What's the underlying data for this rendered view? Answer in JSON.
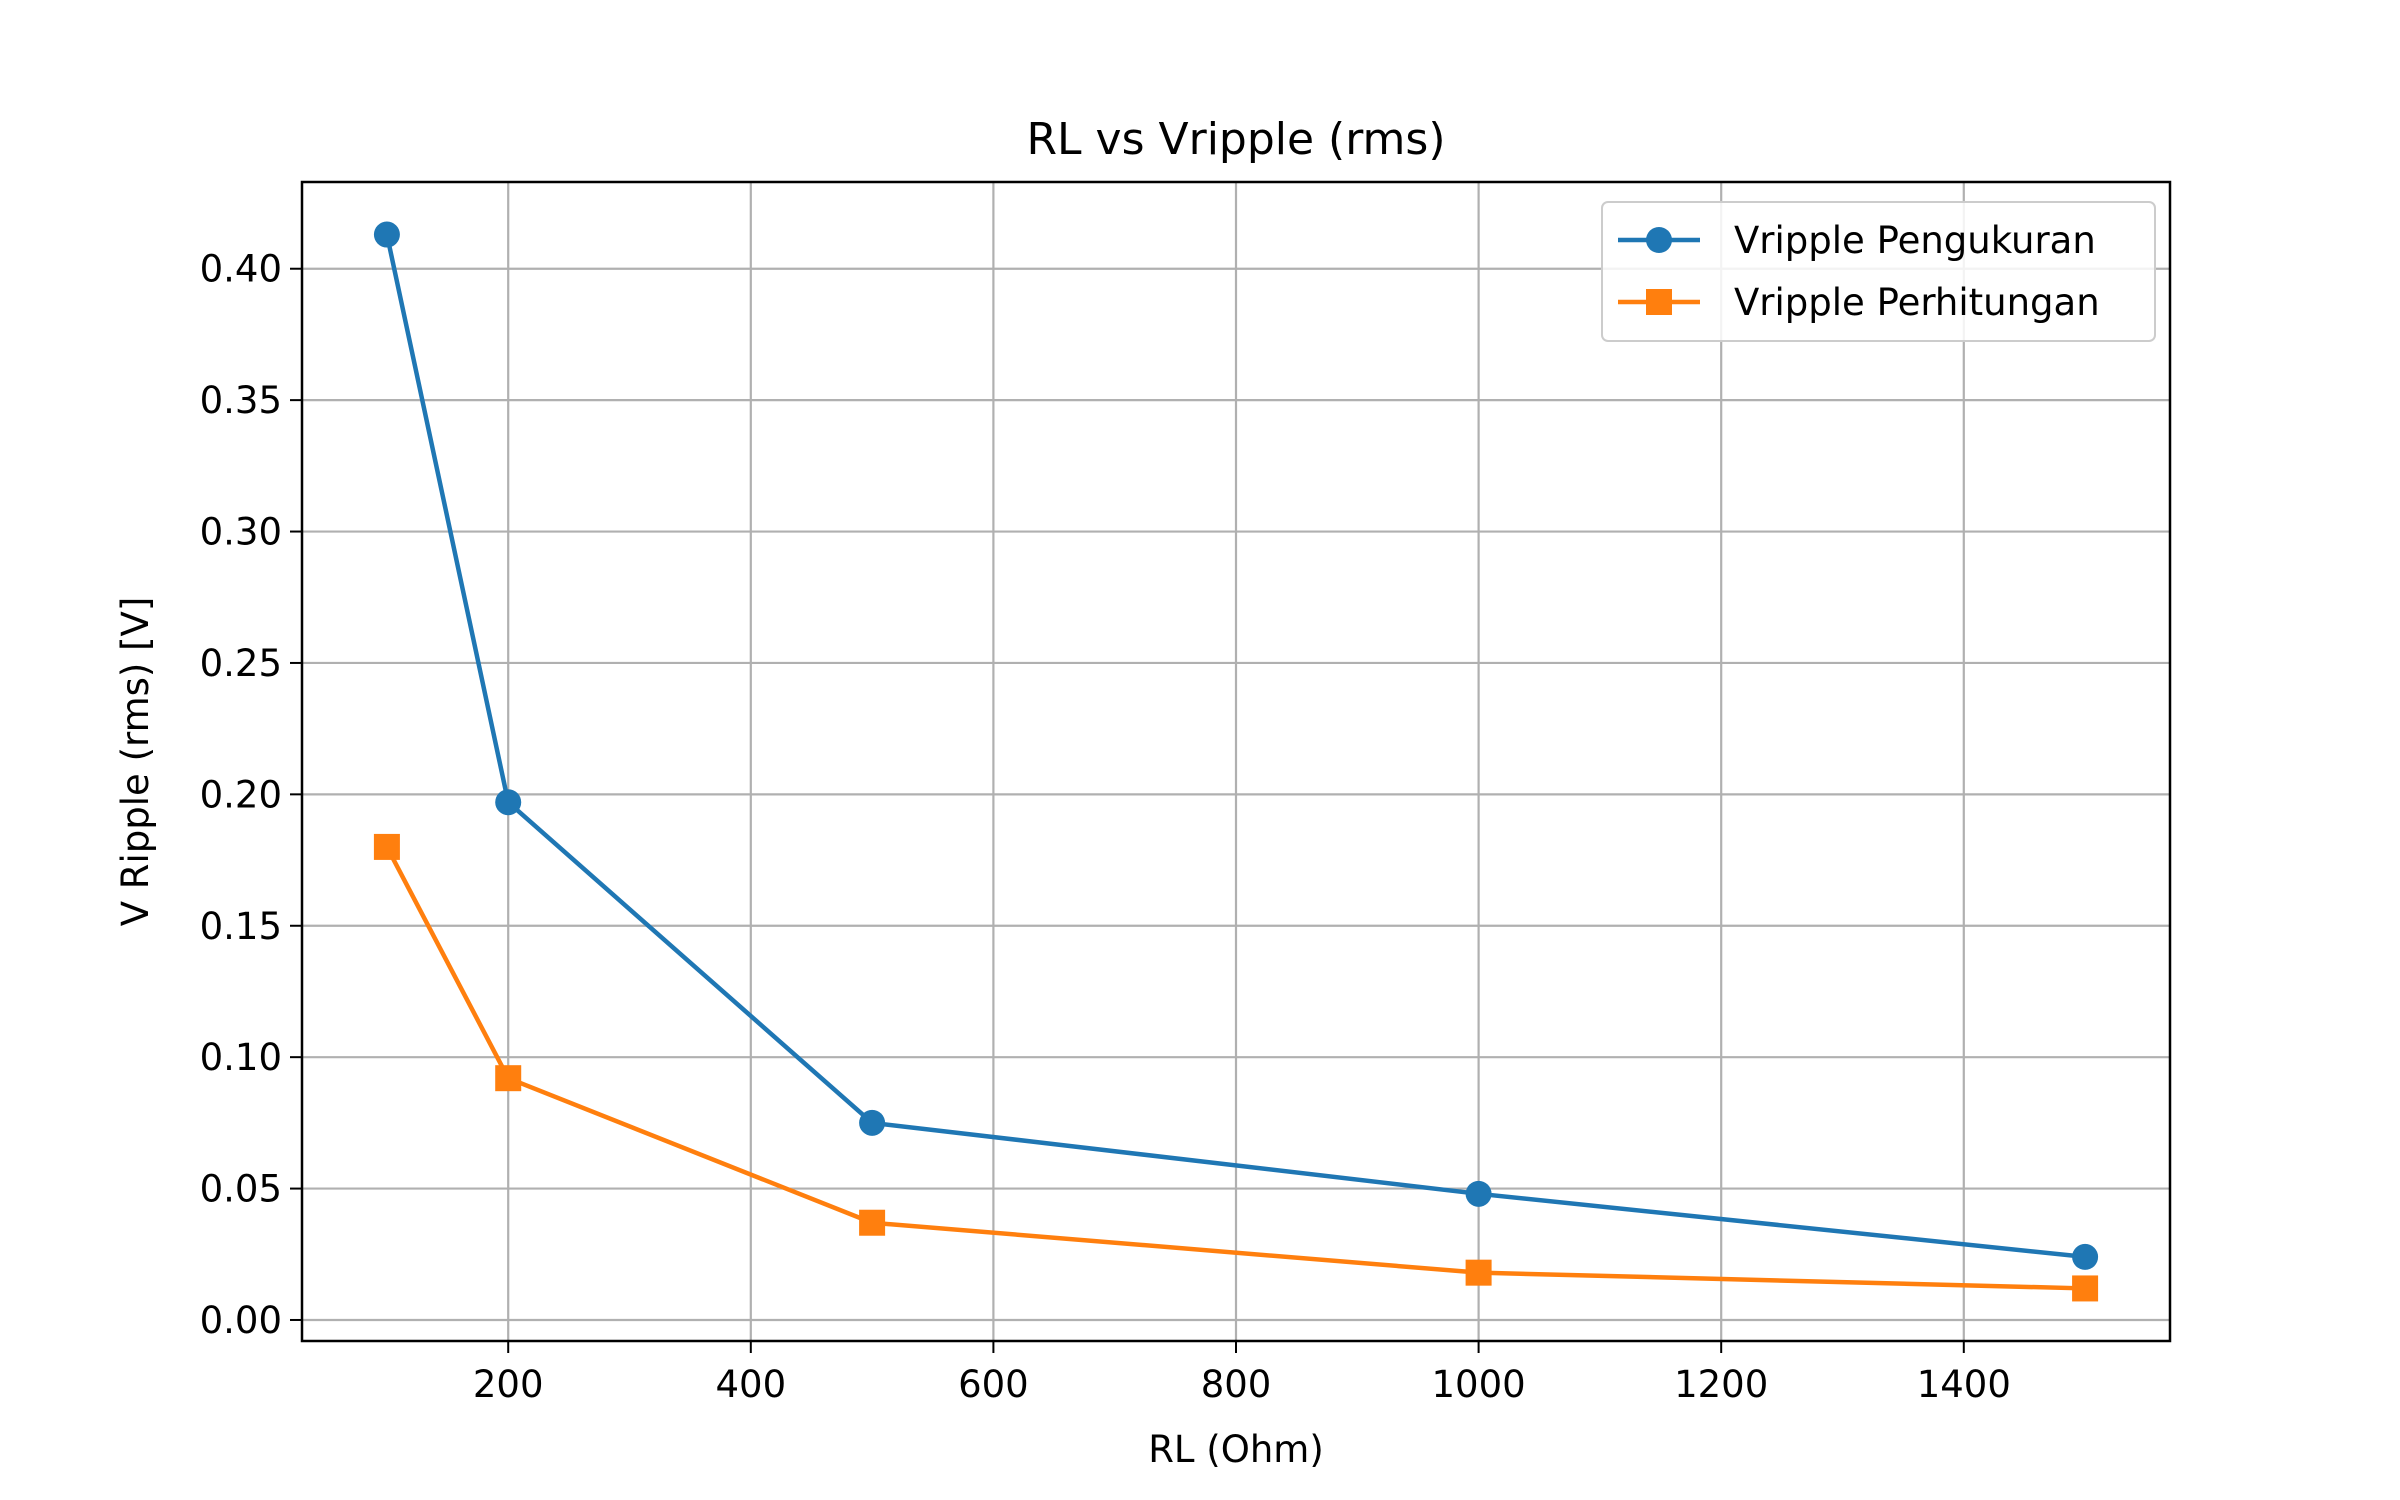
{
  "chart_data": {
    "type": "line",
    "title": "RL vs Vripple (rms)",
    "xlabel": "RL (Ohm)",
    "ylabel": "V Ripple (rms) [V]",
    "xlim": [
      30,
      1570
    ],
    "ylim": [
      -0.008,
      0.433
    ],
    "xticks": [
      200,
      400,
      600,
      800,
      1000,
      1200,
      1400
    ],
    "xtick_labels": [
      "200",
      "400",
      "600",
      "800",
      "1000",
      "1200",
      "1400"
    ],
    "yticks": [
      0.0,
      0.05,
      0.1,
      0.15,
      0.2,
      0.25,
      0.3,
      0.35,
      0.4
    ],
    "ytick_labels": [
      "0.00",
      "0.05",
      "0.10",
      "0.15",
      "0.20",
      "0.25",
      "0.30",
      "0.35",
      "0.40"
    ],
    "grid": true,
    "legend_position": "top-right",
    "x": [
      100,
      200,
      500,
      1000,
      1500
    ],
    "series": [
      {
        "name": "Vripple Pengukuran",
        "values": [
          0.413,
          0.197,
          0.075,
          0.048,
          0.024
        ],
        "color": "#1f77b4",
        "marker": "circle"
      },
      {
        "name": "Vripple Perhitungan",
        "values": [
          0.18,
          0.092,
          0.037,
          0.018,
          0.012
        ],
        "color": "#ff7f0e",
        "marker": "square"
      }
    ]
  }
}
